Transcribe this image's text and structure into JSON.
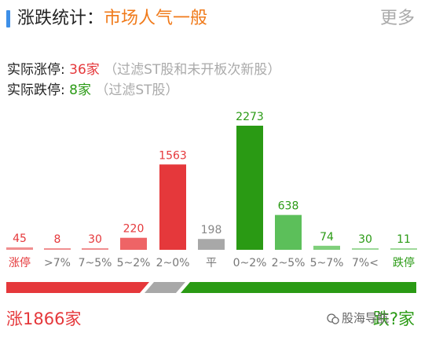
{
  "header": {
    "title_prefix": "涨跌统计：",
    "title_value": "市场人气一般",
    "more_label": "更多"
  },
  "stats": {
    "limit_up_label": "实际涨停:",
    "limit_up_value": "36家",
    "limit_up_note": "（过滤ST股和未开板次新股）",
    "limit_down_label": "实际跌停:",
    "limit_down_value": "8家",
    "limit_down_note": "（过滤ST股）"
  },
  "colors": {
    "up": "#e5383b",
    "up_light": "#ee6466",
    "down": "#2a9a14",
    "down_light": "#5cbf5a",
    "flat": "#a8a8a8"
  },
  "chart_data": {
    "type": "bar",
    "categories": [
      "涨停",
      ">7%",
      "7~5%",
      "5~2%",
      "2~0%",
      "平",
      "0~2%",
      "2~5%",
      "5~7%",
      "7%<",
      "跌停"
    ],
    "values": [
      45,
      8,
      30,
      220,
      1563,
      198,
      2273,
      638,
      74,
      30,
      11
    ],
    "bar_colors": [
      "#f08f90",
      "#f08f90",
      "#f08f90",
      "#ee6466",
      "#e5383b",
      "#a8a8a8",
      "#2a9a14",
      "#5cbf5a",
      "#7fcf7b",
      "#9ed99a",
      "#9ed99a"
    ],
    "label_colors": [
      "#e5383b",
      "#e5383b",
      "#e5383b",
      "#e5383b",
      "#e5383b",
      "#888888",
      "#2a9a14",
      "#2a9a14",
      "#2a9a14",
      "#2a9a14",
      "#2a9a14"
    ],
    "category_colors": [
      "#e5383b",
      "#777777",
      "#777777",
      "#777777",
      "#777777",
      "#777777",
      "#777777",
      "#777777",
      "#777777",
      "#777777",
      "#2a9a14"
    ],
    "ylim": [
      0,
      2273
    ]
  },
  "footer": {
    "up_total": "涨1866家",
    "down_total": "跌?家",
    "watermark": "股海导航"
  }
}
